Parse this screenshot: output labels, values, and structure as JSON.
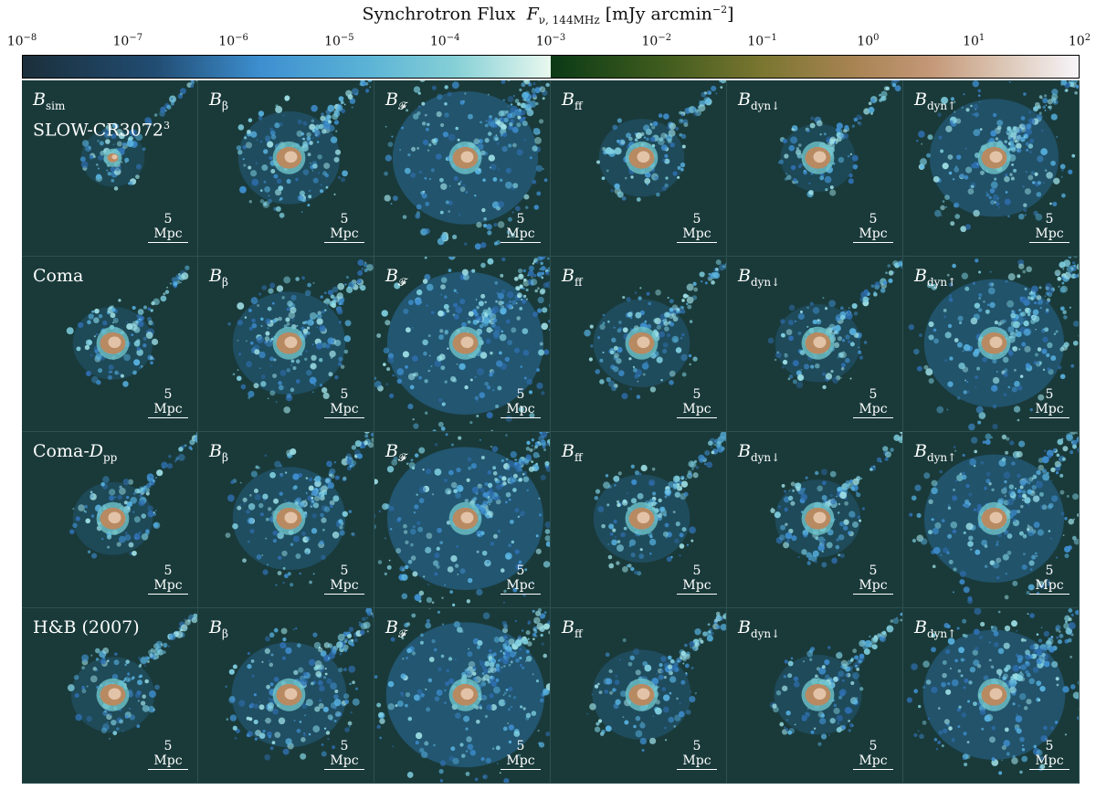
{
  "colorbar": {
    "title": "Synchrotron Flux",
    "symbol": "F",
    "symbol_sub": "ν, 144MHz",
    "unit": "[mJy arcmin",
    "unit_exp": "−2",
    "unit_close": "]",
    "ticks": [
      {
        "base": "10",
        "exp": "−8"
      },
      {
        "base": "10",
        "exp": "−7"
      },
      {
        "base": "10",
        "exp": "−6"
      },
      {
        "base": "10",
        "exp": "−5"
      },
      {
        "base": "10",
        "exp": "−4"
      },
      {
        "base": "10",
        "exp": "−3"
      },
      {
        "base": "10",
        "exp": "−2"
      },
      {
        "base": "10",
        "exp": "−1"
      },
      {
        "base": "10",
        "exp": "0"
      },
      {
        "base": "10",
        "exp": "1"
      },
      {
        "base": "10",
        "exp": "2"
      }
    ]
  },
  "rows": [
    {
      "label_main": "B",
      "label_sub": "sim",
      "label_line2": "SLOW-CR3072",
      "label_line2_sup": "3"
    },
    {
      "label_main": "Coma"
    },
    {
      "label_main": "Coma-",
      "label_ital": "D",
      "label_sub": "pp"
    },
    {
      "label_main": "H&B (2007)"
    }
  ],
  "columns": [
    {
      "sym": "B",
      "sub": ""
    },
    {
      "sym": "B",
      "sub": "β"
    },
    {
      "sym": "B",
      "sub": "𝓕"
    },
    {
      "sym": "B",
      "sub": "ff"
    },
    {
      "sym": "B",
      "sub": "dyn↓"
    },
    {
      "sym": "B",
      "sub": "dyn↑"
    }
  ],
  "scale_bar": "5 Mpc"
}
